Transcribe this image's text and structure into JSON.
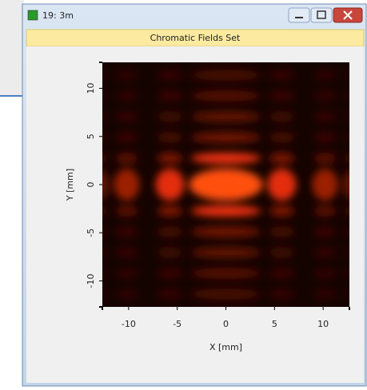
{
  "window": {
    "title": "19: 3m"
  },
  "header": {
    "title": "Chromatic Fields Set"
  },
  "plot": {
    "xlabel": "X [mm]",
    "ylabel": "Y [mm]",
    "xlim": [
      -12.7,
      12.7
    ],
    "ylim": [
      -12.7,
      12.7
    ],
    "xticks": [
      -10,
      -5,
      0,
      5,
      10
    ],
    "yticks": [
      -10,
      -5,
      0,
      5,
      10
    ]
  }
}
